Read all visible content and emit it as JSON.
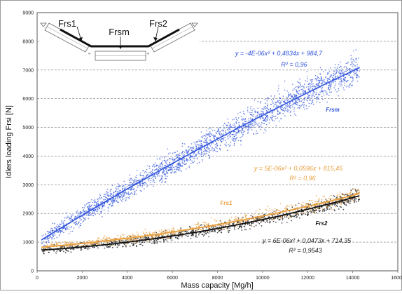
{
  "chart_data": {
    "type": "scatter",
    "title": "",
    "xlabel": "Mass capacity [Mg/h]",
    "ylabel": "Idlers loading Frsi [N]",
    "xlim": [
      0,
      16000
    ],
    "ylim": [
      0,
      9000
    ],
    "x_ticks": [
      "0",
      "2000",
      "4000",
      "6000",
      "8000",
      "10000",
      "12000",
      "14000",
      "16000"
    ],
    "y_ticks": [
      "0",
      "1000",
      "2000",
      "3000",
      "4000",
      "5000",
      "6000",
      "7000",
      "8000",
      "9000"
    ],
    "grid": "horizontal dashed",
    "x_range_of_data": [
      200,
      14300
    ],
    "series": [
      {
        "name": "Frsm",
        "color": "#3355dd",
        "trendline": {
          "type": "polynomial",
          "a2": -4e-06,
          "a1": 0.4834,
          "a0": 984.7
        },
        "equation": "y = -4E-06x² + 0,4834x + 984,7",
        "r2": "R² = 0,96",
        "points": [
          [
            300,
            1100
          ],
          [
            1000,
            1400
          ],
          [
            2000,
            1900
          ],
          [
            3000,
            2400
          ],
          [
            4000,
            2900
          ],
          [
            5000,
            3400
          ],
          [
            6000,
            3800
          ],
          [
            7000,
            4300
          ],
          [
            8000,
            4700
          ],
          [
            9000,
            5100
          ],
          [
            10000,
            5500
          ],
          [
            11000,
            5900
          ],
          [
            12000,
            6200
          ],
          [
            13000,
            6600
          ],
          [
            14000,
            7000
          ]
        ]
      },
      {
        "name": "Frs1",
        "color": "#e8a040",
        "trendline": {
          "type": "polynomial",
          "a2": 5e-06,
          "a1": 0.0596,
          "a0": 815.45
        },
        "equation": "y = 5E-06x² + 0,0596x + 815,45",
        "r2": "R² = 0,96",
        "points": [
          [
            300,
            840
          ],
          [
            2000,
            950
          ],
          [
            4000,
            1130
          ],
          [
            6000,
            1360
          ],
          [
            8000,
            1620
          ],
          [
            10000,
            1930
          ],
          [
            12000,
            2260
          ],
          [
            14000,
            2630
          ]
        ]
      },
      {
        "name": "Frs2",
        "color": "#111111",
        "trendline": {
          "type": "polynomial",
          "a2": 6e-06,
          "a1": 0.0473,
          "a0": 714.35
        },
        "equation": "y = 6E-06x² + 0,0473x + 714,35",
        "r2": "R² = 0,9543",
        "points": [
          [
            300,
            730
          ],
          [
            2000,
            830
          ],
          [
            4000,
            1000
          ],
          [
            6000,
            1210
          ],
          [
            8000,
            1480
          ],
          [
            10000,
            1790
          ],
          [
            12000,
            2150
          ],
          [
            14000,
            2550
          ]
        ]
      }
    ],
    "inset": {
      "labels": {
        "frs1": "Frs1",
        "frsm": "Frsm",
        "frs2": "Frs2"
      }
    }
  }
}
